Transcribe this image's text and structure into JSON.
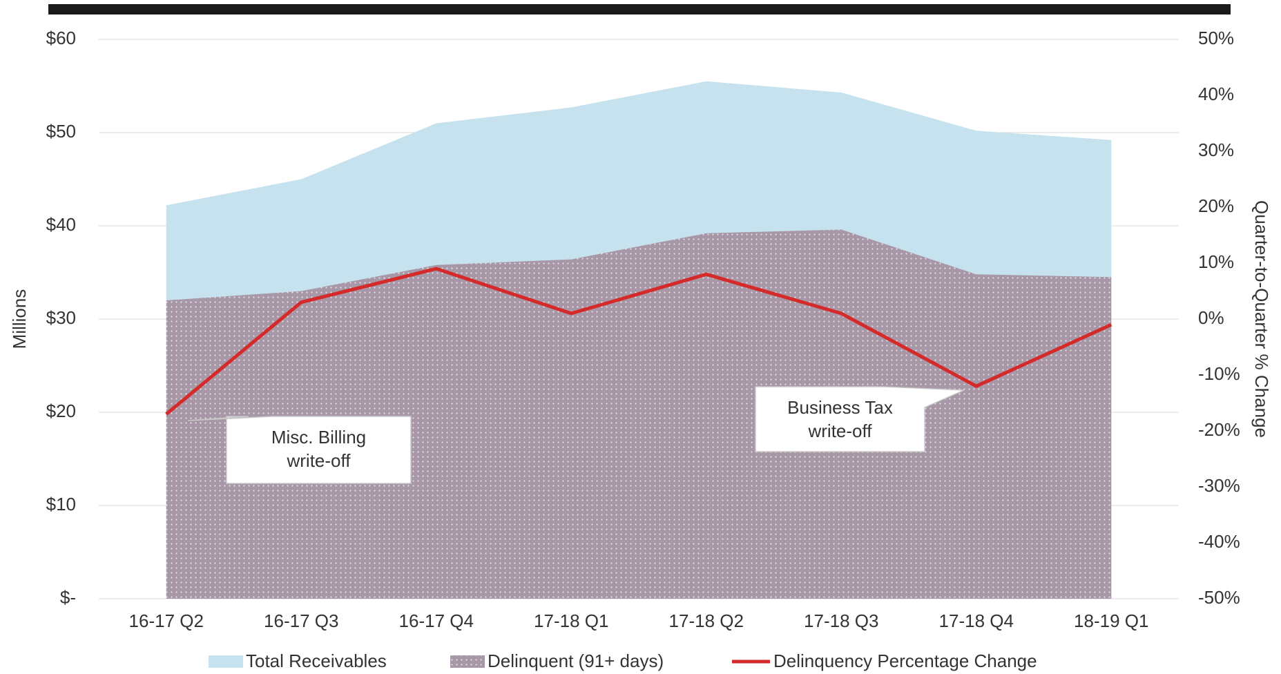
{
  "chart_data": {
    "type": "area",
    "categories": [
      "16-17 Q2",
      "16-17 Q3",
      "16-17 Q4",
      "17-18 Q1",
      "17-18 Q2",
      "17-18 Q3",
      "17-18 Q4",
      "18-19 Q1"
    ],
    "series": [
      {
        "name": "Total Receivables",
        "color": "#c6e2ef",
        "values": [
          42.2,
          45,
          51,
          52.7,
          55.5,
          54.3,
          50.2,
          49.2
        ]
      },
      {
        "name": "Delinquent (91+ days)",
        "color": "#a897a6",
        "values": [
          32,
          33,
          35.8,
          36.4,
          39.2,
          39.6,
          34.8,
          34.5
        ]
      },
      {
        "name": "Delinquency Percentage Change",
        "color": "#d42a2a",
        "axis": "y2",
        "values": [
          -17,
          3,
          9,
          1,
          8,
          1,
          -12,
          -1
        ]
      }
    ],
    "ylabel": "Millions",
    "y2label": "Quarter-to-Quarter % Change",
    "ylim": [
      0,
      60
    ],
    "yticks": [
      {
        "value": 0,
        "label": "$-"
      },
      {
        "value": 10,
        "label": "$10"
      },
      {
        "value": 20,
        "label": "$20"
      },
      {
        "value": 30,
        "label": "$30"
      },
      {
        "value": 40,
        "label": "$40"
      },
      {
        "value": 50,
        "label": "$50"
      },
      {
        "value": 60,
        "label": "$60"
      }
    ],
    "y2lim": [
      -50,
      50
    ],
    "y2ticks": [
      {
        "value": -50,
        "label": "-50%"
      },
      {
        "value": -40,
        "label": "-40%"
      },
      {
        "value": -30,
        "label": "-30%"
      },
      {
        "value": -20,
        "label": "-20%"
      },
      {
        "value": -10,
        "label": "-10%"
      },
      {
        "value": 0,
        "label": "0%"
      },
      {
        "value": 10,
        "label": "10%"
      },
      {
        "value": 20,
        "label": "20%"
      },
      {
        "value": 30,
        "label": "30%"
      },
      {
        "value": 40,
        "label": "40%"
      },
      {
        "value": 50,
        "label": "50%"
      }
    ],
    "grid": true,
    "legend": "bottom",
    "annotations": [
      {
        "lines": [
          "Misc. Billing",
          "write-off"
        ]
      },
      {
        "lines": [
          "Business Tax",
          "write-off"
        ]
      }
    ]
  }
}
